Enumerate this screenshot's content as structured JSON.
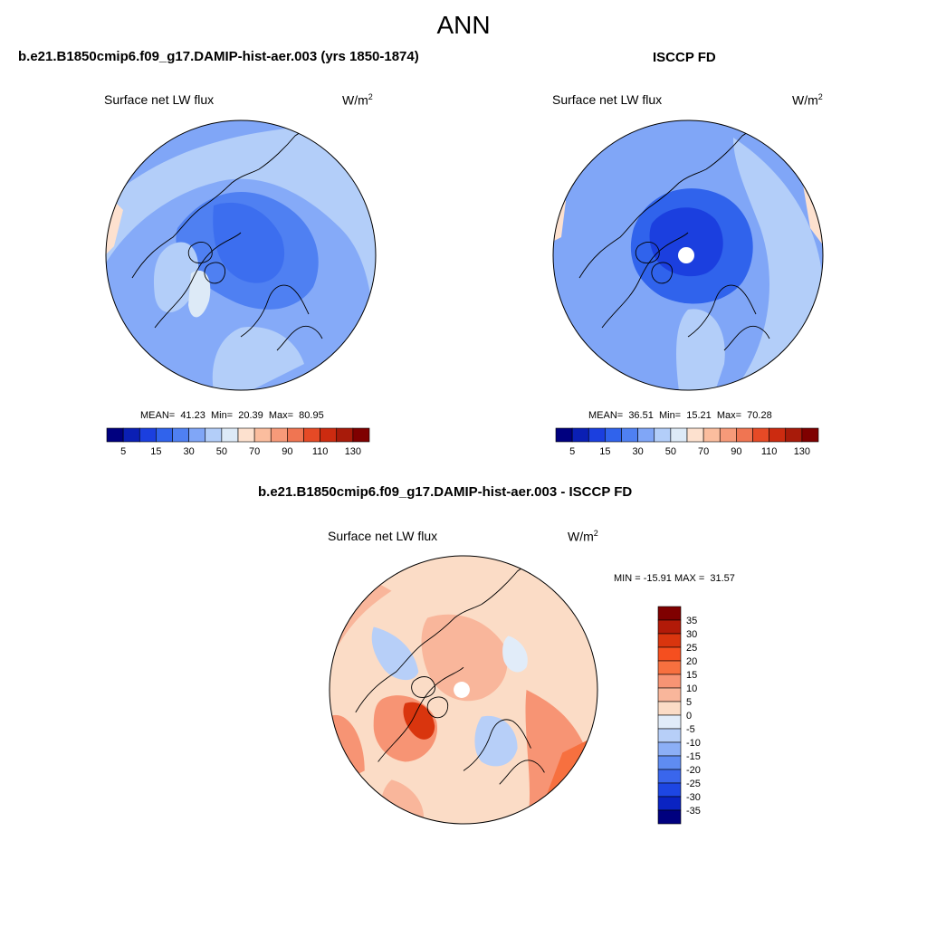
{
  "title": "ANN",
  "panels": [
    {
      "case_title": "b.e21.B1850cmip6.f09_g17.DAMIP-hist-aer.003 (yrs 1850-1874)",
      "variable": "Surface net LW flux",
      "units": "W/m",
      "units_exp": "2",
      "stats": "MEAN=  41.23  Min=  20.39  Max=  80.95"
    },
    {
      "case_title": "ISCCP FD",
      "variable": "Surface net LW flux",
      "units": "W/m",
      "units_exp": "2",
      "stats": "MEAN=  36.51  Min=  15.21  Max=  70.28"
    },
    {
      "case_title": "b.e21.B1850cmip6.f09_g17.DAMIP-hist-aer.003 - ISCCP FD",
      "variable": "Surface net LW flux",
      "units": "W/m",
      "units_exp": "2",
      "stats": "MIN = -15.91 MAX =  31.57"
    }
  ],
  "horizontal_colorbar": {
    "labels": [
      "5",
      "15",
      "30",
      "50",
      "70",
      "90",
      "110",
      "130"
    ],
    "colors": [
      "#00007f",
      "#0a1fb4",
      "#1b3fdf",
      "#3063ec",
      "#4f80f2",
      "#80a6f7",
      "#b3cef9",
      "#ddeaf7",
      "#fde1cf",
      "#fbbd9e",
      "#f79a79",
      "#f07552",
      "#e64a26",
      "#cc2b10",
      "#a81b0a",
      "#7f0000"
    ]
  },
  "vertical_colorbar": {
    "labels": [
      "35",
      "30",
      "25",
      "20",
      "15",
      "10",
      "5",
      "0",
      "-5",
      "-10",
      "-15",
      "-20",
      "-25",
      "-30",
      "-35"
    ],
    "colors": [
      "#7f0000",
      "#b21a08",
      "#d9350e",
      "#f54f1f",
      "#f7703f",
      "#f79474",
      "#f9b69b",
      "#fbdcc6",
      "#e1ecf9",
      "#b7cff8",
      "#8caff6",
      "#5f8cf2",
      "#3a66ec",
      "#1d46e3",
      "#0a23c2",
      "#00007f"
    ]
  }
}
